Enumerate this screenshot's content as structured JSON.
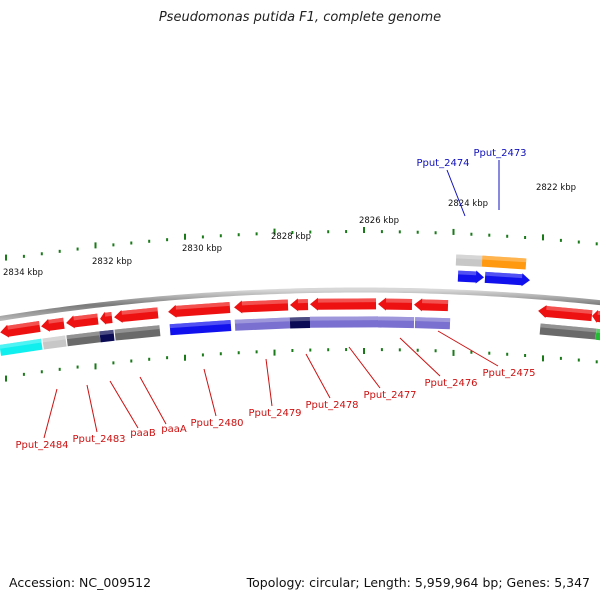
{
  "title": "Pseudomonas putida F1, complete genome",
  "footer": {
    "accession": "Accession: NC_009512",
    "summary": "Topology: circular; Length: 5,959,964 bp; Genes: 5,347"
  },
  "colors": {
    "forward_gene": "#ee1111",
    "reverse_gene": "#1111ee",
    "hypothetical": "#6a6a6a",
    "light_gray": "#c7c7c7",
    "dark_navy": "#0a0a55",
    "lavender": "#7a70d0",
    "cyan": "#11eeee",
    "orange": "#ff9910",
    "green": "#22bb33",
    "tick": "#1a7a1a",
    "red_label": "#cc1111",
    "blue_label": "#1111bb"
  },
  "scale_labels": [
    "2822 kbp",
    "2824 kbp",
    "2826 kbp",
    "2828 kbp",
    "2830 kbp",
    "2832 kbp",
    "2834 kbp"
  ],
  "gene_labels": [
    {
      "text": "Pput_2473",
      "color": "blue"
    },
    {
      "text": "Pput_2474",
      "color": "blue"
    },
    {
      "text": "Pput_2475",
      "color": "red"
    },
    {
      "text": "Pput_2476",
      "color": "red"
    },
    {
      "text": "Pput_2477",
      "color": "red"
    },
    {
      "text": "Pput_2478",
      "color": "red"
    },
    {
      "text": "Pput_2479",
      "color": "red"
    },
    {
      "text": "Pput_2480",
      "color": "red"
    },
    {
      "text": "paaA",
      "color": "red"
    },
    {
      "text": "paaB",
      "color": "red"
    },
    {
      "text": "Pput_2483",
      "color": "red"
    },
    {
      "text": "Pput_2484",
      "color": "red"
    }
  ]
}
